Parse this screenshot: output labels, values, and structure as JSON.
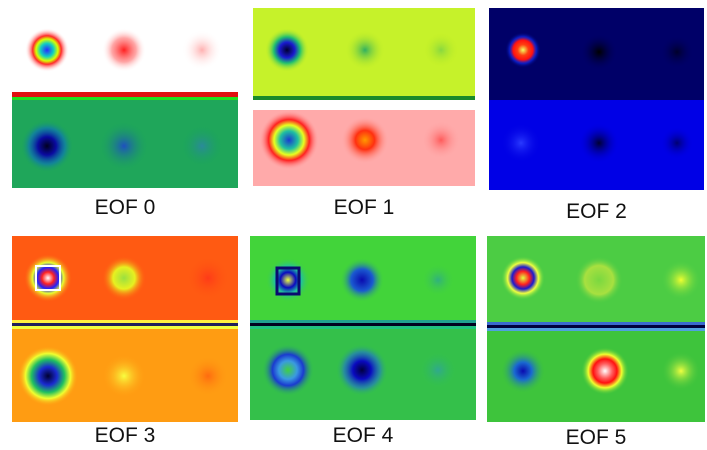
{
  "figure": {
    "panels": [
      {
        "caption": "EOF 0"
      },
      {
        "caption": "EOF 1"
      },
      {
        "caption": "EOF 2"
      },
      {
        "caption": "EOF 3"
      },
      {
        "caption": "EOF 4"
      },
      {
        "caption": "EOF 5"
      }
    ]
  }
}
